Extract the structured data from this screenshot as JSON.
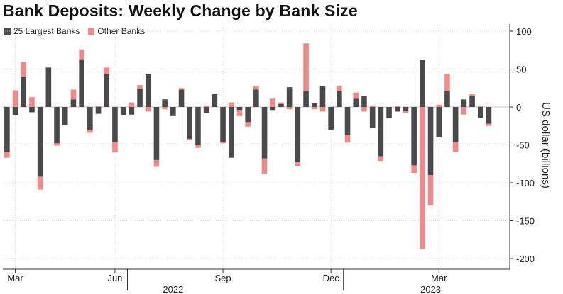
{
  "chart_data": {
    "type": "bar",
    "stacked": true,
    "title": "Bank Deposits: Weekly Change by Bank Size",
    "ylabel": "US dollar (billions)",
    "ylim": [
      -210,
      110
    ],
    "yticks": [
      100,
      50,
      0,
      -50,
      -100,
      -150,
      -200
    ],
    "grid": true,
    "legend_position": "top-left",
    "colors": {
      "large": "#4a4a4a",
      "other": "#f08a8a",
      "grid": "#cccccc",
      "axis": "#333333"
    },
    "xticks": [
      {
        "label": "Mar",
        "index": 1
      },
      {
        "label": "Jun",
        "index": 13
      },
      {
        "label": "Sep",
        "index": 26
      },
      {
        "label": "Dec",
        "index": 39
      },
      {
        "label": "Mar",
        "index": 52
      }
    ],
    "year_labels": [
      {
        "label": "2022",
        "index": 20
      },
      {
        "label": "2023",
        "index": 51
      }
    ],
    "year_separators": [
      14.5,
      40.5
    ],
    "series": [
      {
        "name": "25 Largest Banks",
        "values": [
          -59,
          -11,
          40,
          -7,
          -92,
          52,
          -48,
          -24,
          10,
          63,
          -30,
          -9,
          43,
          -46,
          -11,
          -10,
          24,
          43,
          -70,
          10,
          -12,
          23,
          -42,
          -50,
          -8,
          17,
          -46,
          -67,
          -4,
          -20,
          23,
          -68,
          -4,
          4,
          26,
          -73,
          21,
          5,
          28,
          -30,
          21,
          -37,
          11,
          14,
          -28,
          -65,
          -15,
          -6,
          -5,
          -77,
          62,
          -90,
          -40,
          21,
          -46,
          10,
          14,
          -14,
          -22
        ]
      },
      {
        "name": "Other Banks",
        "values": [
          -8,
          22,
          19,
          13,
          -17,
          0,
          -3,
          0,
          13,
          13,
          -4,
          1,
          9,
          -14,
          0,
          6,
          5,
          -6,
          -9,
          -3,
          0,
          2,
          -2,
          -4,
          2,
          0,
          -2,
          6,
          -8,
          -6,
          5,
          -20,
          11,
          2,
          -3,
          -5,
          63,
          -3,
          -6,
          0,
          7,
          -10,
          8,
          -6,
          2,
          -6,
          0,
          1,
          -3,
          -10,
          -188,
          -40,
          3,
          23,
          -13,
          -10,
          3,
          1,
          -3
        ]
      }
    ]
  }
}
